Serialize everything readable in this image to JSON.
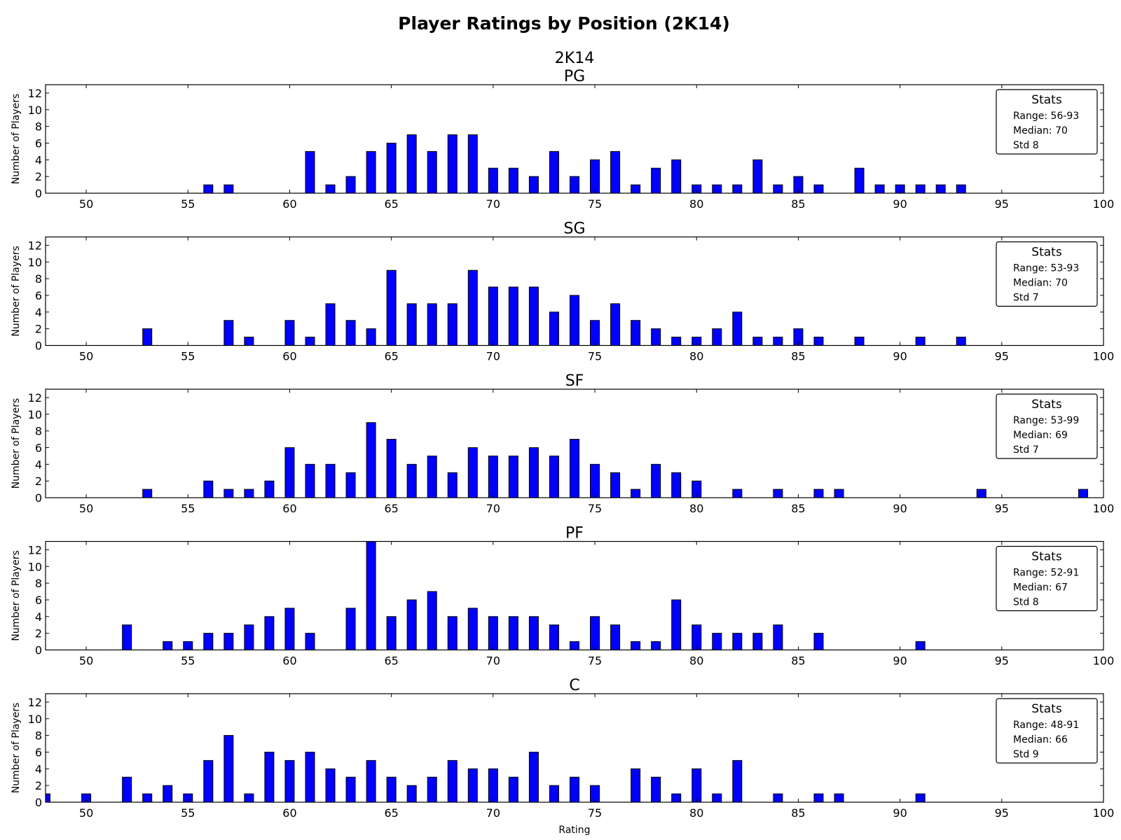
{
  "title": "Player Ratings by Position (2K14)",
  "subtitle": "2K14",
  "xlabel": "Rating",
  "ylabel": "Number of Players",
  "stats_heading": "Stats",
  "colors": {
    "bar": "#0000ff",
    "bar_edge": "#000000",
    "axis": "#000000"
  },
  "chart_data": [
    {
      "type": "bar",
      "title": "PG",
      "xlim": [
        48,
        100
      ],
      "ylim": [
        0,
        13
      ],
      "xticks": [
        50,
        55,
        60,
        65,
        70,
        75,
        80,
        85,
        90,
        95,
        100
      ],
      "yticks": [
        0,
        2,
        4,
        6,
        8,
        10,
        12
      ],
      "legend": "top-right",
      "stats": [
        "Range: 56-93",
        "Median: 70",
        "Std 8"
      ],
      "x": [
        56,
        57,
        61,
        62,
        63,
        64,
        65,
        66,
        67,
        68,
        69,
        70,
        71,
        72,
        73,
        74,
        75,
        76,
        77,
        78,
        79,
        80,
        81,
        82,
        83,
        84,
        85,
        86,
        88,
        89,
        90,
        91,
        92,
        93
      ],
      "values": [
        1,
        1,
        5,
        1,
        2,
        5,
        6,
        7,
        5,
        7,
        7,
        3,
        3,
        2,
        5,
        2,
        4,
        5,
        1,
        3,
        4,
        1,
        1,
        1,
        4,
        1,
        2,
        1,
        3,
        1,
        1,
        1,
        1,
        1
      ]
    },
    {
      "type": "bar",
      "title": "SG",
      "xlim": [
        48,
        100
      ],
      "ylim": [
        0,
        13
      ],
      "xticks": [
        50,
        55,
        60,
        65,
        70,
        75,
        80,
        85,
        90,
        95,
        100
      ],
      "yticks": [
        0,
        2,
        4,
        6,
        8,
        10,
        12
      ],
      "legend": "top-right",
      "stats": [
        "Range: 53-93",
        "Median: 70",
        "Std 7"
      ],
      "x": [
        53,
        57,
        58,
        60,
        61,
        62,
        63,
        64,
        65,
        66,
        67,
        68,
        69,
        70,
        71,
        72,
        73,
        74,
        75,
        76,
        77,
        78,
        79,
        80,
        81,
        82,
        83,
        84,
        85,
        86,
        88,
        91,
        93
      ],
      "values": [
        2,
        3,
        1,
        3,
        1,
        5,
        3,
        2,
        9,
        5,
        5,
        5,
        9,
        7,
        7,
        7,
        4,
        6,
        3,
        5,
        3,
        2,
        1,
        1,
        2,
        4,
        1,
        1,
        2,
        1,
        1,
        1,
        1
      ]
    },
    {
      "type": "bar",
      "title": "SF",
      "xlim": [
        48,
        100
      ],
      "ylim": [
        0,
        13
      ],
      "xticks": [
        50,
        55,
        60,
        65,
        70,
        75,
        80,
        85,
        90,
        95,
        100
      ],
      "yticks": [
        0,
        2,
        4,
        6,
        8,
        10,
        12
      ],
      "legend": "top-right",
      "stats": [
        "Range: 53-99",
        "Median: 69",
        "Std 7"
      ],
      "x": [
        53,
        56,
        57,
        58,
        59,
        60,
        61,
        62,
        63,
        64,
        65,
        66,
        67,
        68,
        69,
        70,
        71,
        72,
        73,
        74,
        75,
        76,
        77,
        78,
        79,
        80,
        82,
        84,
        86,
        87,
        94,
        99
      ],
      "values": [
        1,
        2,
        1,
        1,
        2,
        6,
        4,
        4,
        3,
        9,
        7,
        4,
        5,
        3,
        6,
        5,
        5,
        6,
        5,
        7,
        4,
        3,
        1,
        4,
        3,
        2,
        1,
        1,
        1,
        1,
        1,
        1
      ]
    },
    {
      "type": "bar",
      "title": "PF",
      "xlim": [
        48,
        100
      ],
      "ylim": [
        0,
        13
      ],
      "xticks": [
        50,
        55,
        60,
        65,
        70,
        75,
        80,
        85,
        90,
        95,
        100
      ],
      "yticks": [
        0,
        2,
        4,
        6,
        8,
        10,
        12
      ],
      "legend": "top-right",
      "stats": [
        "Range: 52-91",
        "Median: 67",
        "Std 8"
      ],
      "x": [
        52,
        54,
        55,
        56,
        57,
        58,
        59,
        60,
        61,
        63,
        64,
        65,
        66,
        67,
        68,
        69,
        70,
        71,
        72,
        73,
        74,
        75,
        76,
        77,
        78,
        79,
        80,
        81,
        82,
        83,
        84,
        86,
        91
      ],
      "values": [
        3,
        1,
        1,
        2,
        2,
        3,
        4,
        5,
        2,
        5,
        13,
        4,
        6,
        7,
        4,
        5,
        4,
        4,
        4,
        3,
        1,
        4,
        3,
        1,
        1,
        6,
        3,
        2,
        2,
        2,
        3,
        2,
        1
      ]
    },
    {
      "type": "bar",
      "title": "C",
      "xlim": [
        48,
        100
      ],
      "ylim": [
        0,
        13
      ],
      "xticks": [
        50,
        55,
        60,
        65,
        70,
        75,
        80,
        85,
        90,
        95,
        100
      ],
      "yticks": [
        0,
        2,
        4,
        6,
        8,
        10,
        12
      ],
      "legend": "top-right",
      "stats": [
        "Range: 48-91",
        "Median: 66",
        "Std 9"
      ],
      "x": [
        48,
        50,
        52,
        53,
        54,
        55,
        56,
        57,
        58,
        59,
        60,
        61,
        62,
        63,
        64,
        65,
        66,
        67,
        68,
        69,
        70,
        71,
        72,
        73,
        74,
        75,
        77,
        78,
        79,
        80,
        81,
        82,
        84,
        86,
        87,
        91
      ],
      "values": [
        1,
        1,
        3,
        1,
        2,
        1,
        5,
        8,
        1,
        6,
        5,
        6,
        4,
        3,
        5,
        3,
        2,
        3,
        5,
        4,
        4,
        3,
        6,
        2,
        3,
        2,
        4,
        3,
        1,
        4,
        1,
        5,
        1,
        1,
        1,
        1
      ]
    }
  ]
}
